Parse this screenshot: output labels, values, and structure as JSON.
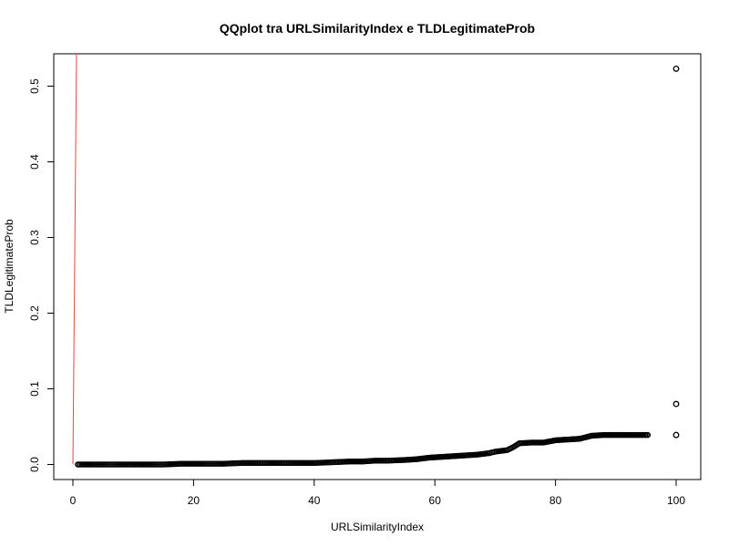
{
  "chart_data": {
    "type": "scatter",
    "title": "QQplot tra URLSimilarityIndex e TLDLegitimateProb",
    "xlabel": "URLSimilarityIndex",
    "ylabel": "TLDLegitimateProb",
    "xlim": [
      0,
      100
    ],
    "ylim": [
      0,
      0.5
    ],
    "x_ticks": [
      0,
      20,
      40,
      60,
      80,
      100
    ],
    "y_ticks": [
      0.0,
      0.1,
      0.2,
      0.3,
      0.4,
      0.5
    ],
    "x_tick_labels": [
      "0",
      "20",
      "40",
      "60",
      "80",
      "100"
    ],
    "y_tick_labels": [
      "0.0",
      "0.1",
      "0.2",
      "0.3",
      "0.4",
      "0.5"
    ],
    "grid": false,
    "series": [
      {
        "marker": "open-circle",
        "color": "#000000",
        "points": [
          [
            0.8,
            0.0
          ],
          [
            1.5,
            0.0
          ],
          [
            3,
            0.0
          ],
          [
            5,
            0.0
          ],
          [
            8,
            0.0
          ],
          [
            12,
            0.0
          ],
          [
            15,
            0.0
          ],
          [
            18,
            0.001
          ],
          [
            22,
            0.001
          ],
          [
            25,
            0.001
          ],
          [
            28,
            0.002
          ],
          [
            30,
            0.002
          ],
          [
            33,
            0.002
          ],
          [
            36,
            0.002
          ],
          [
            40,
            0.002
          ],
          [
            43,
            0.003
          ],
          [
            46,
            0.004
          ],
          [
            48,
            0.004
          ],
          [
            50,
            0.005
          ],
          [
            52,
            0.005
          ],
          [
            55,
            0.006
          ],
          [
            57,
            0.007
          ],
          [
            59,
            0.009
          ],
          [
            61,
            0.01
          ],
          [
            63,
            0.011
          ],
          [
            65,
            0.012
          ],
          [
            67,
            0.013
          ],
          [
            69,
            0.015
          ],
          [
            70,
            0.017
          ],
          [
            72,
            0.019
          ],
          [
            73,
            0.023
          ],
          [
            74,
            0.028
          ],
          [
            76,
            0.029
          ],
          [
            78,
            0.029
          ],
          [
            80,
            0.032
          ],
          [
            82,
            0.033
          ],
          [
            84,
            0.034
          ],
          [
            86,
            0.038
          ],
          [
            88,
            0.039
          ],
          [
            90,
            0.039
          ],
          [
            92,
            0.039
          ],
          [
            94,
            0.039
          ],
          [
            95.3,
            0.039
          ],
          [
            100,
            0.039
          ],
          [
            100,
            0.08
          ],
          [
            100,
            0.523
          ]
        ]
      },
      {
        "marker": "line",
        "color": "#e8473f",
        "segment": [
          [
            0,
            0
          ],
          [
            0.6,
            0.545
          ]
        ]
      }
    ]
  }
}
